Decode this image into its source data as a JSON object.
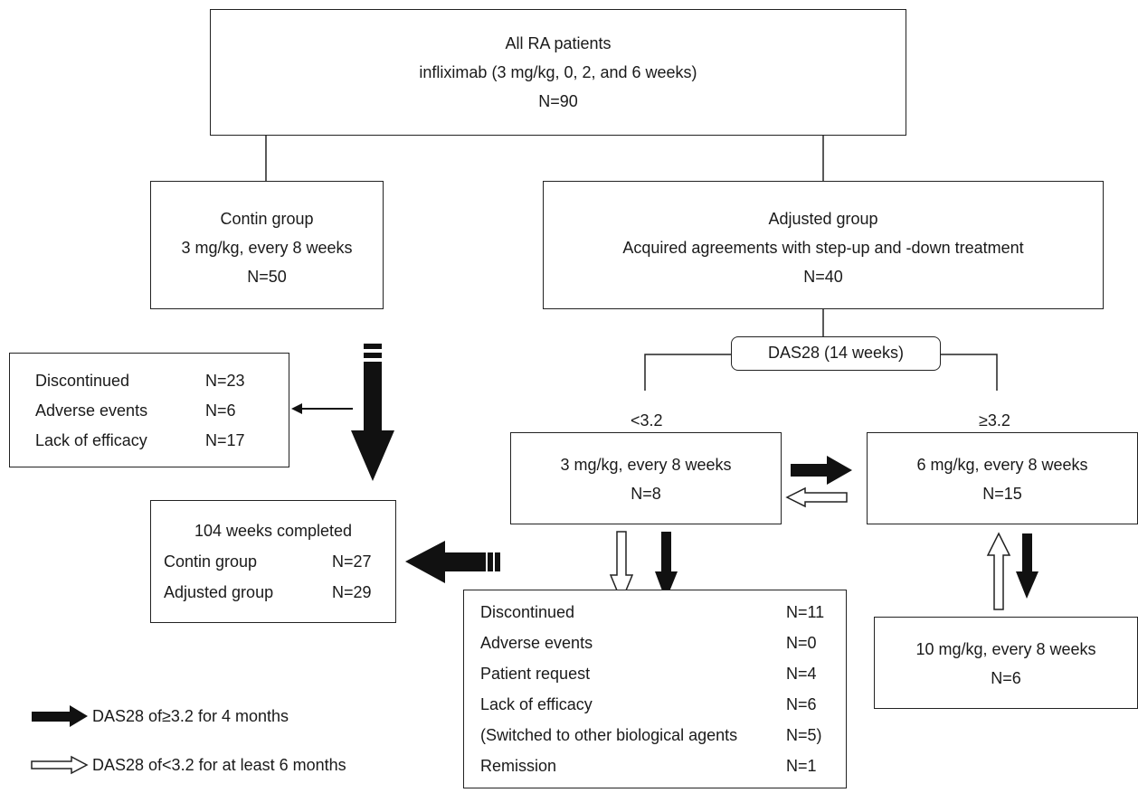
{
  "top": {
    "title": "All RA patients",
    "regimen": "infliximab (3 mg/kg, 0, 2, and 6 weeks)",
    "n": "N=90"
  },
  "contin": {
    "title": "Contin group",
    "regimen": "3 mg/kg, every 8 weeks",
    "n": "N=50"
  },
  "adjusted": {
    "title": "Adjusted group",
    "subtitle": "Acquired agreements with step-up and -down treatment",
    "n": "N=40"
  },
  "das_node": "DAS28 (14 weeks)",
  "threshold_low": "<3.2",
  "threshold_high": "≥3.2",
  "contin_discontinued": {
    "rows": [
      {
        "label": "Discontinued",
        "n": "N=23"
      },
      {
        "label": "Adverse events",
        "n": "N=6"
      },
      {
        "label": "Lack of efficacy",
        "n": "N=17"
      }
    ]
  },
  "completed": {
    "title": "104 weeks completed",
    "rows": [
      {
        "label": "Contin group",
        "n": "N=27"
      },
      {
        "label": "Adjusted group",
        "n": "N=29"
      }
    ]
  },
  "dose3": {
    "regimen": "3 mg/kg, every 8 weeks",
    "n": "N=8"
  },
  "dose6": {
    "regimen": "6 mg/kg, every 8 weeks",
    "n": "N=15"
  },
  "dose10": {
    "regimen": "10 mg/kg, every 8 weeks",
    "n": "N=6"
  },
  "adjusted_discontinued": {
    "rows": [
      {
        "label": "Discontinued",
        "n": "N=11"
      },
      {
        "label": "Adverse events",
        "n": "N=0"
      },
      {
        "label": "Patient request",
        "n": "N=4"
      },
      {
        "label": "Lack of efficacy",
        "n": "N=6"
      },
      {
        "label": "(Switched to other biological agents",
        "n": "N=5)"
      },
      {
        "label": "Remission",
        "n": "N=1"
      }
    ]
  },
  "legend": {
    "black_arrow": "DAS28 of≥3.2 for 4 months",
    "white_arrow": "DAS28 of<3.2 for at least 6 months"
  },
  "colors": {
    "line": "#222222",
    "arrow_fill": "#111111",
    "background": "#ffffff"
  }
}
